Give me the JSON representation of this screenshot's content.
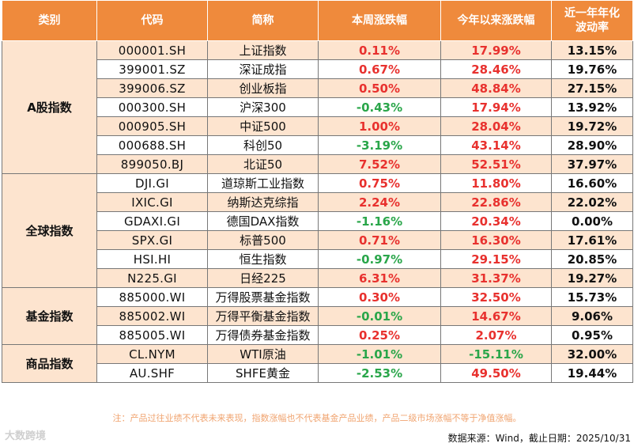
{
  "headers": {
    "category": "类别",
    "code": "代码",
    "name": "简称",
    "week": "本周涨跌幅",
    "ytd": "今年以来涨跌幅",
    "vol_line1": "近一年年化",
    "vol_line2": "波动率"
  },
  "groups": [
    {
      "category": "A股指数",
      "rows": [
        {
          "code": "000001.SH",
          "name": "上证指数",
          "week": "0.11%",
          "ytd": "17.99%",
          "vol": "13.15%"
        },
        {
          "code": "399001.SZ",
          "name": "深证成指",
          "week": "0.67%",
          "ytd": "28.46%",
          "vol": "19.76%"
        },
        {
          "code": "399006.SZ",
          "name": "创业板指",
          "week": "0.50%",
          "ytd": "48.84%",
          "vol": "27.15%"
        },
        {
          "code": "000300.SH",
          "name": "沪深300",
          "week": "-0.43%",
          "ytd": "17.94%",
          "vol": "13.92%"
        },
        {
          "code": "000905.SH",
          "name": "中证500",
          "week": "1.00%",
          "ytd": "28.04%",
          "vol": "19.72%"
        },
        {
          "code": "000688.SH",
          "name": "科创50",
          "week": "-3.19%",
          "ytd": "43.14%",
          "vol": "28.90%"
        },
        {
          "code": "899050.BJ",
          "name": "北证50",
          "week": "7.52%",
          "ytd": "52.51%",
          "vol": "37.97%"
        }
      ]
    },
    {
      "category": "全球指数",
      "rows": [
        {
          "code": "DJI.GI",
          "name": "道琼斯工业指数",
          "week": "0.75%",
          "ytd": "11.80%",
          "vol": "16.60%"
        },
        {
          "code": "IXIC.GI",
          "name": "纳斯达克综指",
          "week": "2.24%",
          "ytd": "22.86%",
          "vol": "22.02%"
        },
        {
          "code": "GDAXI.GI",
          "name": "德国DAX指数",
          "week": "-1.16%",
          "ytd": "20.34%",
          "vol": "0.00%"
        },
        {
          "code": "SPX.GI",
          "name": "标普500",
          "week": "0.71%",
          "ytd": "16.30%",
          "vol": "17.61%"
        },
        {
          "code": "HSI.HI",
          "name": "恒生指数",
          "week": "-0.97%",
          "ytd": "29.15%",
          "vol": "20.85%"
        },
        {
          "code": "N225.GI",
          "name": "日经225",
          "week": "6.31%",
          "ytd": "31.37%",
          "vol": "19.27%"
        }
      ]
    },
    {
      "category": "基金指数",
      "rows": [
        {
          "code": "885000.WI",
          "name": "万得股票基金指数",
          "week": "0.30%",
          "ytd": "32.50%",
          "vol": "15.73%"
        },
        {
          "code": "885002.WI",
          "name": "万得平衡基金指数",
          "week": "-0.01%",
          "ytd": "14.67%",
          "vol": "9.06%"
        },
        {
          "code": "885005.WI",
          "name": "万得债券基金指数",
          "week": "0.25%",
          "ytd": "2.07%",
          "vol": "0.95%"
        }
      ]
    },
    {
      "category": "商品指数",
      "rows": [
        {
          "code": "CL.NYM",
          "name": "WTI原油",
          "week": "-1.01%",
          "ytd": "-15.11%",
          "vol": "32.00%"
        },
        {
          "code": "AU.SHF",
          "name": "SHFE黄金",
          "week": "-2.53%",
          "ytd": "49.50%",
          "vol": "19.44%"
        }
      ]
    }
  ],
  "colors": {
    "header_bg": "#ef8a3c",
    "stripe_bg": "#fde4cf",
    "positive": "#e8312e",
    "negative": "#2aa64a"
  },
  "note": "注：产品过往业绩不代表未来表现，指数涨幅也不代表基金产品业绩，产品二级市场涨幅不等于净值涨幅。",
  "source": "数据来源：Wind，截止日期：2025/10/31",
  "watermark": "大数跨境"
}
